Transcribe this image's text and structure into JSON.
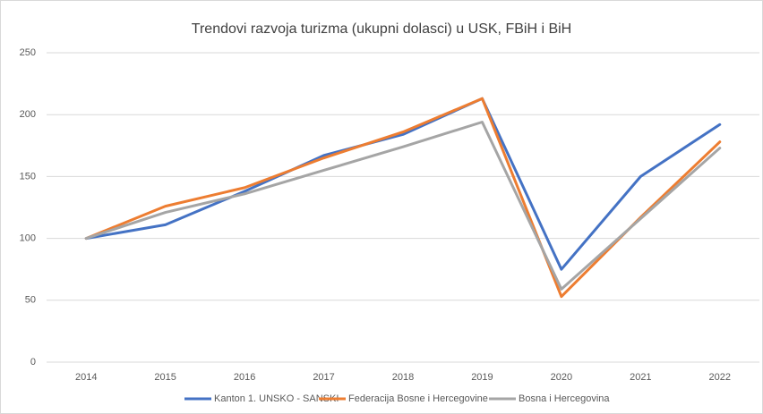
{
  "chart_data": {
    "type": "line",
    "title": "Trendovi razvoja turizma (ukupni dolasci) u USK, FBiH i BiH",
    "categories": [
      "2014",
      "2015",
      "2016",
      "2017",
      "2018",
      "2019",
      "2020",
      "2021",
      "2022"
    ],
    "series": [
      {
        "name": "Kanton 1. UNSKO - SANSKI",
        "color": "#4472c4",
        "values": [
          100,
          111,
          138,
          167,
          184,
          213,
          75,
          150,
          192
        ]
      },
      {
        "name": "Federacija Bosne i Hercegovine",
        "color": "#ed7d31",
        "values": [
          100,
          126,
          141,
          165,
          186,
          213,
          53,
          117,
          178
        ]
      },
      {
        "name": "Bosna i Hercegovina",
        "color": "#a5a5a5",
        "values": [
          100,
          121,
          136,
          155,
          174,
          194,
          59,
          116,
          173
        ]
      }
    ],
    "ylim": [
      0,
      250
    ],
    "yticks": [
      0,
      50,
      100,
      150,
      200,
      250
    ],
    "grid": true,
    "legend": "bottom"
  }
}
